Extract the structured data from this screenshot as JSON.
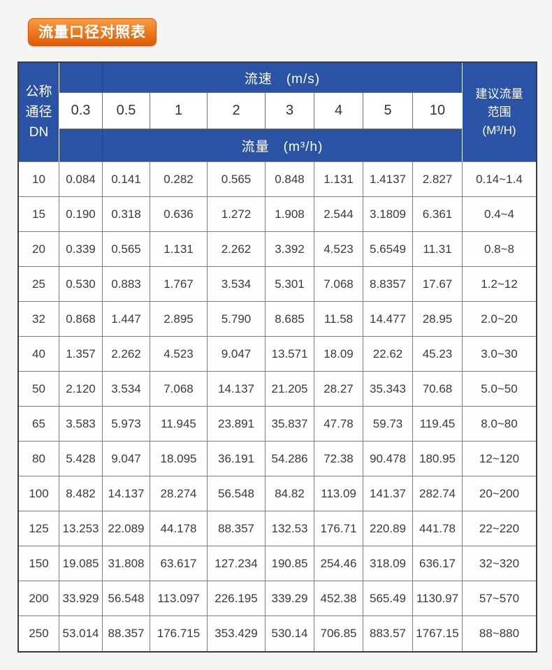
{
  "title": {
    "text": "流量口径对照表"
  },
  "table": {
    "corner": [
      "公称",
      "通径",
      "DN"
    ],
    "velocity_header": "流速　(m/s)",
    "flow_header": "流量　(m³/h)",
    "recommend": [
      "建议流量",
      "范围",
      "(M³/H)"
    ],
    "velocities": [
      "0.3",
      "0.5",
      "1",
      "2",
      "3",
      "4",
      "5",
      "10"
    ],
    "rows": [
      {
        "dn": "10",
        "values": [
          "0.084",
          "0.141",
          "0.282",
          "0.565",
          "0.848",
          "1.131",
          "1.4137",
          "2.827"
        ],
        "range": "0.14~1.4"
      },
      {
        "dn": "15",
        "values": [
          "0.190",
          "0.318",
          "0.636",
          "1.272",
          "1.908",
          "2.544",
          "3.1809",
          "6.361"
        ],
        "range": "0.4~4"
      },
      {
        "dn": "20",
        "values": [
          "0.339",
          "0.565",
          "1.131",
          "2.262",
          "3.392",
          "4.523",
          "5.6549",
          "11.31"
        ],
        "range": "0.8~8"
      },
      {
        "dn": "25",
        "values": [
          "0.530",
          "0.883",
          "1.767",
          "3.534",
          "5.301",
          "7.068",
          "8.8357",
          "17.67"
        ],
        "range": "1.2~12"
      },
      {
        "dn": "32",
        "values": [
          "0.868",
          "1.447",
          "2.895",
          "5.790",
          "8.685",
          "11.58",
          "14.477",
          "28.95"
        ],
        "range": "2.0~20"
      },
      {
        "dn": "40",
        "values": [
          "1.357",
          "2.262",
          "4.523",
          "9.047",
          "13.571",
          "18.09",
          "22.62",
          "45.23"
        ],
        "range": "3.0~30"
      },
      {
        "dn": "50",
        "values": [
          "2.120",
          "3.534",
          "7.068",
          "14.137",
          "21.205",
          "28.27",
          "35.343",
          "70.68"
        ],
        "range": "5.0~50"
      },
      {
        "dn": "65",
        "values": [
          "3.583",
          "5.973",
          "11.945",
          "23.891",
          "35.837",
          "47.78",
          "59.73",
          "119.45"
        ],
        "range": "8.0~80"
      },
      {
        "dn": "80",
        "values": [
          "5.428",
          "9.047",
          "18.095",
          "36.191",
          "54.286",
          "72.38",
          "90.478",
          "180.95"
        ],
        "range": "12~120"
      },
      {
        "dn": "100",
        "values": [
          "8.482",
          "14.137",
          "28.274",
          "56.548",
          "84.82",
          "113.09",
          "141.37",
          "282.74"
        ],
        "range": "20~200"
      },
      {
        "dn": "125",
        "values": [
          "13.253",
          "22.089",
          "44.178",
          "88.357",
          "132.53",
          "176.71",
          "220.89",
          "441.78"
        ],
        "range": "22~220"
      },
      {
        "dn": "150",
        "values": [
          "19.085",
          "31.808",
          "63.617",
          "127.234",
          "190.85",
          "254.46",
          "318.09",
          "636.17"
        ],
        "range": "32~320"
      },
      {
        "dn": "200",
        "values": [
          "33.929",
          "56.548",
          "113.097",
          "226.195",
          "339.29",
          "452.38",
          "565.49",
          "1130.97"
        ],
        "range": "57~570"
      },
      {
        "dn": "250",
        "values": [
          "53.014",
          "88.357",
          "176.715",
          "353.429",
          "530.14",
          "706.85",
          "883.57",
          "1767.15"
        ],
        "range": "88~880"
      }
    ]
  },
  "colors": {
    "header_blue": "#2a52a5",
    "badge_orange_top": "#f69d48",
    "badge_orange_bottom": "#e25a04",
    "inner_border_gray": "#7c7c7c",
    "outer_border": "#3b3b3b",
    "page_background": "#f5f5f4"
  }
}
